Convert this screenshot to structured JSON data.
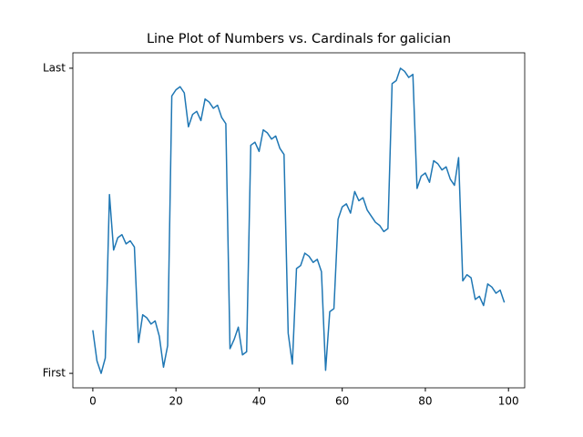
{
  "chart_data": {
    "type": "line",
    "title": "Line Plot of Numbers vs. Cardinals for galician",
    "x": [
      0,
      1,
      2,
      3,
      4,
      5,
      6,
      7,
      8,
      9,
      10,
      11,
      12,
      13,
      14,
      15,
      16,
      17,
      18,
      19,
      20,
      21,
      22,
      23,
      24,
      25,
      26,
      27,
      28,
      29,
      30,
      31,
      32,
      33,
      34,
      35,
      36,
      37,
      38,
      39,
      40,
      41,
      42,
      43,
      44,
      45,
      46,
      47,
      48,
      49,
      50,
      51,
      52,
      53,
      54,
      55,
      56,
      57,
      58,
      59,
      60,
      61,
      62,
      63,
      64,
      65,
      66,
      67,
      68,
      69,
      70,
      71,
      72,
      73,
      74,
      75,
      76,
      77,
      78,
      79,
      80,
      81,
      82,
      83,
      84,
      85,
      86,
      87,
      88,
      89,
      90,
      91,
      92,
      93,
      94,
      95,
      96,
      97,
      98,
      99
    ],
    "series": [
      {
        "color": "#1f77b4",
        "values": [
          14,
          4,
          0,
          5,
          58,
          40,
          44,
          45,
          42,
          43,
          41,
          10,
          19,
          18,
          16,
          17,
          12,
          2,
          9,
          90,
          92,
          93,
          91,
          80,
          84,
          85,
          82,
          89,
          88,
          86,
          87,
          83,
          81,
          8,
          11,
          15,
          6,
          7,
          74,
          75,
          72,
          79,
          78,
          76,
          77,
          73,
          71,
          13,
          3,
          34,
          35,
          39,
          38,
          36,
          37,
          33,
          1,
          20,
          21,
          50,
          54,
          55,
          52,
          59,
          56,
          57,
          53,
          51,
          49,
          48,
          46,
          47,
          94,
          95,
          99,
          98,
          96,
          97,
          60,
          64,
          65,
          62,
          69,
          68,
          66,
          67,
          63,
          61,
          70,
          30,
          32,
          31,
          24,
          25,
          22,
          29,
          28,
          26,
          27,
          23
        ]
      }
    ],
    "xlim": [
      -4.8,
      103.9
    ],
    "ylim": [
      -4.7,
      104
    ],
    "xticks": [
      0,
      20,
      40,
      60,
      80,
      100
    ],
    "yticks": [
      {
        "value": 0,
        "label": "First"
      },
      {
        "value": 99,
        "label": "Last"
      }
    ]
  }
}
